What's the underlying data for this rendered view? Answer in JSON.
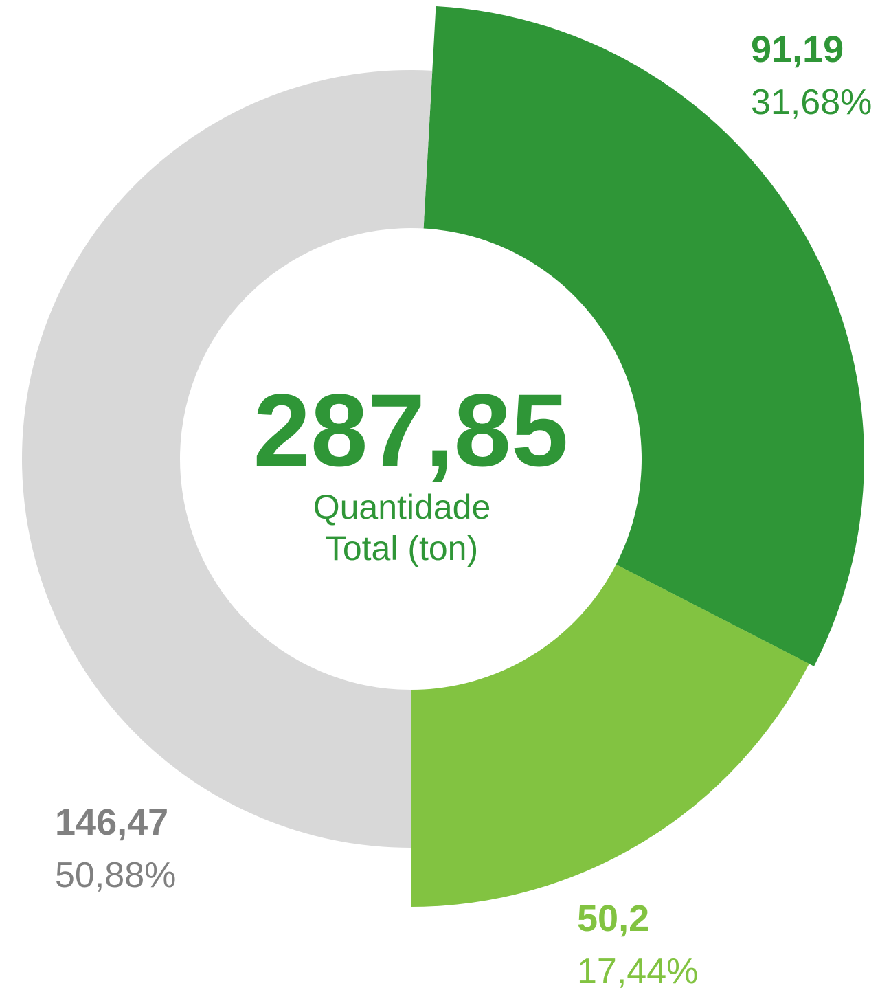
{
  "chart_data": {
    "type": "donut",
    "categories": [
      null,
      null,
      null
    ],
    "values": [
      91.19,
      50.2,
      146.47
    ],
    "value_labels": [
      "91,19",
      "50,2",
      "146,47"
    ],
    "percentages": [
      31.68,
      17.44,
      50.88
    ],
    "percentage_labels": [
      "31,68%",
      "17,44%",
      "50,88%"
    ],
    "colors": [
      "#2f9637",
      "#82c341",
      "#d8d8d8"
    ],
    "total": 287.85,
    "total_label": "287,85",
    "center_text": [
      "Quantidade",
      "Total (ton)"
    ]
  }
}
